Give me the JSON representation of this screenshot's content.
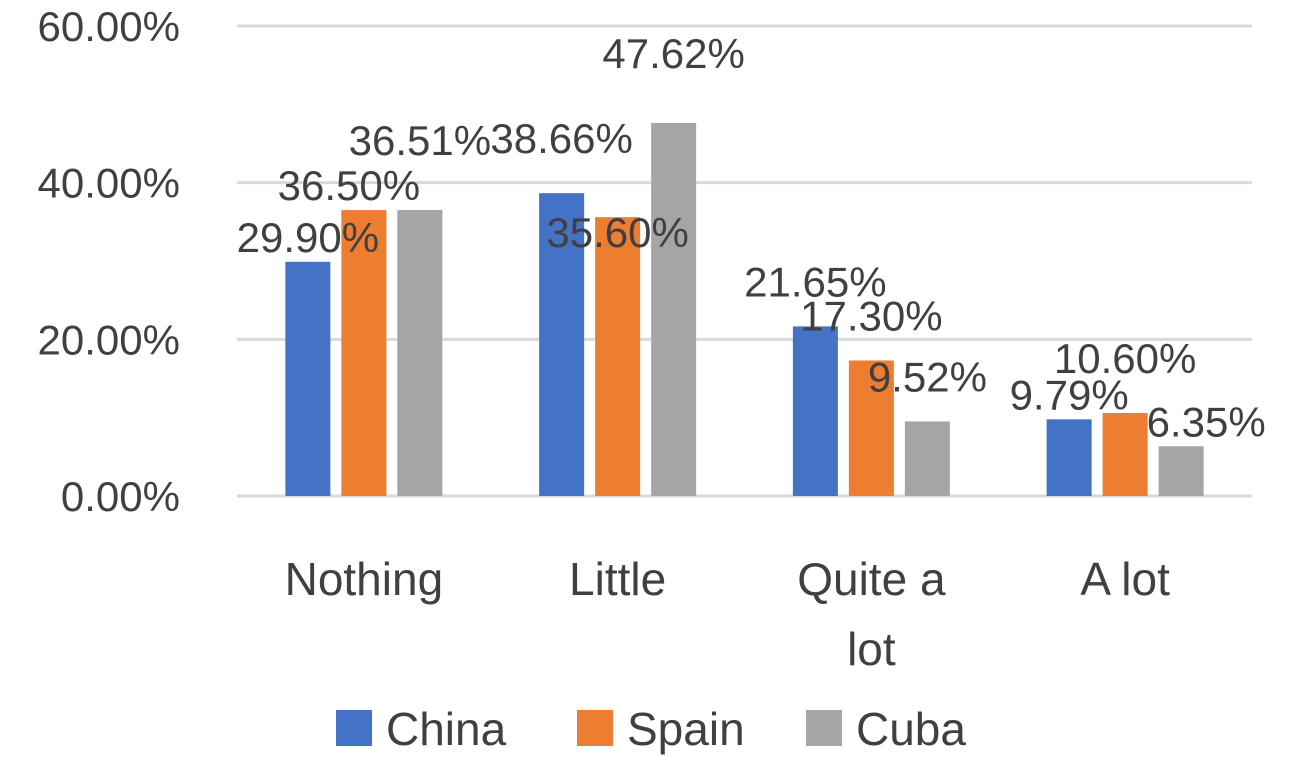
{
  "chart_data": {
    "type": "bar",
    "categories": [
      "Nothing",
      "Little",
      "Quite a lot",
      "A lot"
    ],
    "series": [
      {
        "name": "China",
        "color": "#4472c4",
        "values": [
          29.9,
          38.66,
          21.65,
          9.79
        ],
        "labels": [
          "29.90%",
          "38.66%",
          "21.65%",
          "9.79%"
        ]
      },
      {
        "name": "Spain",
        "color": "#ed7d31",
        "values": [
          36.5,
          35.6,
          17.3,
          10.6
        ],
        "labels": [
          "36.50%",
          "35.60%",
          "17.30%",
          "10.60%"
        ]
      },
      {
        "name": "Cuba",
        "color": "#a5a5a5",
        "values": [
          36.51,
          47.62,
          9.52,
          6.35
        ],
        "labels": [
          "36.51%",
          "47.62%",
          "9.52%",
          "6.35%"
        ]
      }
    ],
    "yticks": [
      {
        "value": 0,
        "label": "0.00%"
      },
      {
        "value": 20,
        "label": "20.00%"
      },
      {
        "value": 40,
        "label": "40.00%"
      },
      {
        "value": 60,
        "label": "60.00%"
      }
    ],
    "ylim": [
      0,
      60
    ],
    "grid": true,
    "legend_position": "bottom",
    "title": "",
    "xlabel": "",
    "ylabel": ""
  }
}
